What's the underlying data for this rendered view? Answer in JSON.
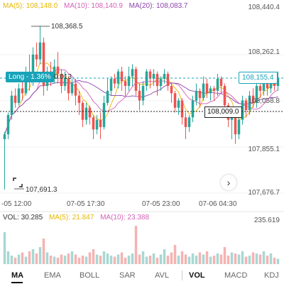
{
  "colors": {
    "up": "#26a69a",
    "down": "#ef5350",
    "ma5": "#e6b800",
    "ma10": "#d35fb7",
    "ma20": "#8e44ad",
    "accent": "#18a3b8"
  },
  "legend": {
    "ma5": "MA(5): 108,148.0",
    "ma10": "MA(10): 108,140.9",
    "ma20": "MA(20): 108,083.7"
  },
  "y_axis": [
    "108,440.4",
    "108,262.1",
    "108,058.8",
    "107,855.1",
    "107,676.7"
  ],
  "x_axis": [
    "-05 12:00",
    "07-05 17:30",
    "07-05 23:00",
    "07-06 04:30"
  ],
  "annotations": {
    "high": "108,368.5",
    "low": "107,691.3",
    "position_label": "Long - 1.36%",
    "position_value": "0.013",
    "current_price": "108,155.4",
    "last_price": "108,009.0"
  },
  "volume": {
    "label": "VOL: 30.285",
    "ma5": "MA(5): 21.847",
    "ma10": "MA(10): 23.388",
    "axis_max": "235.619"
  },
  "tabs": [
    "MA",
    "EMA",
    "BOLL",
    "SAR",
    "AVL",
    "VOL",
    "MACD",
    "KDJ"
  ],
  "active_tabs": [
    "MA",
    "VOL"
  ],
  "icons": {
    "nav": "chevron-right-icon",
    "crop": "crop-frame-icon"
  },
  "chart_data": {
    "type": "candlestick",
    "y_range": [
      107676.7,
      108440.4
    ],
    "candles": [
      [
        107900,
        107920,
        107691,
        107930,
        0
      ],
      [
        107920,
        108000,
        107900,
        108010,
        0
      ],
      [
        108000,
        108080,
        107980,
        108100,
        0
      ],
      [
        108080,
        108050,
        108030,
        108110,
        1
      ],
      [
        108050,
        108110,
        108040,
        108130,
        0
      ],
      [
        108110,
        108090,
        108060,
        108140,
        1
      ],
      [
        108090,
        108160,
        108080,
        108200,
        0
      ],
      [
        108160,
        108140,
        108100,
        108250,
        1
      ],
      [
        108140,
        108250,
        108120,
        108280,
        0
      ],
      [
        108250,
        108230,
        108200,
        108300,
        1
      ],
      [
        108230,
        108300,
        108210,
        108368,
        0
      ],
      [
        108300,
        108120,
        108080,
        108320,
        1
      ],
      [
        108120,
        108180,
        108100,
        108200,
        0
      ],
      [
        108180,
        108150,
        108120,
        108220,
        1
      ],
      [
        108150,
        108200,
        108130,
        108230,
        0
      ],
      [
        108200,
        108170,
        108130,
        108260,
        1
      ],
      [
        108170,
        108120,
        108090,
        108190,
        1
      ],
      [
        108120,
        108150,
        108100,
        108180,
        0
      ],
      [
        108150,
        108090,
        108060,
        108160,
        1
      ],
      [
        108090,
        108130,
        108080,
        108150,
        0
      ],
      [
        108130,
        108080,
        108040,
        108150,
        1
      ],
      [
        108080,
        108050,
        108000,
        108100,
        1
      ],
      [
        108050,
        107980,
        107950,
        108060,
        1
      ],
      [
        107980,
        108030,
        107960,
        108050,
        0
      ],
      [
        108030,
        107990,
        107960,
        108040,
        1
      ],
      [
        107990,
        107940,
        107900,
        108000,
        1
      ],
      [
        107940,
        107980,
        107920,
        108000,
        0
      ],
      [
        107980,
        107950,
        107900,
        108010,
        1
      ],
      [
        107950,
        108050,
        107940,
        108080,
        0
      ],
      [
        108050,
        108100,
        108040,
        108150,
        0
      ],
      [
        108100,
        108150,
        108080,
        108160,
        0
      ],
      [
        108150,
        108130,
        108110,
        108170,
        1
      ],
      [
        108130,
        108180,
        108110,
        108190,
        0
      ],
      [
        108180,
        108140,
        108100,
        108200,
        1
      ],
      [
        108140,
        108120,
        108080,
        108160,
        1
      ],
      [
        108120,
        108160,
        108100,
        108200,
        0
      ],
      [
        108160,
        108190,
        108120,
        108210,
        0
      ],
      [
        108190,
        108100,
        108080,
        108200,
        1
      ],
      [
        108100,
        108060,
        108020,
        108130,
        1
      ],
      [
        108060,
        108120,
        108040,
        108140,
        0
      ],
      [
        108120,
        108180,
        108100,
        108190,
        0
      ],
      [
        108180,
        108150,
        108110,
        108190,
        1
      ],
      [
        108150,
        108170,
        108120,
        108190,
        0
      ],
      [
        108170,
        108120,
        108080,
        108180,
        1
      ],
      [
        108120,
        108150,
        108100,
        108160,
        0
      ],
      [
        108150,
        108170,
        108130,
        108190,
        0
      ],
      [
        108170,
        108120,
        108100,
        108180,
        1
      ],
      [
        108120,
        108090,
        108050,
        108130,
        1
      ],
      [
        108090,
        108030,
        108010,
        108100,
        1
      ],
      [
        108030,
        108060,
        108000,
        108070,
        0
      ],
      [
        108060,
        107990,
        107960,
        108070,
        1
      ],
      [
        107990,
        107950,
        107900,
        108010,
        1
      ],
      [
        107950,
        107990,
        107930,
        108000,
        0
      ],
      [
        107990,
        108060,
        107970,
        108080,
        0
      ],
      [
        108060,
        108100,
        108040,
        108130,
        0
      ],
      [
        108100,
        108070,
        108030,
        108110,
        1
      ],
      [
        108070,
        108130,
        108060,
        108160,
        0
      ],
      [
        108130,
        108090,
        108070,
        108150,
        1
      ],
      [
        108090,
        108110,
        108060,
        108120,
        0
      ],
      [
        108110,
        108100,
        108060,
        108120,
        1
      ],
      [
        108100,
        108150,
        108080,
        108170,
        0
      ],
      [
        108150,
        108120,
        108090,
        108160,
        1
      ],
      [
        108120,
        108040,
        108010,
        108130,
        1
      ],
      [
        108040,
        107980,
        107950,
        108050,
        1
      ],
      [
        107980,
        107990,
        107900,
        108010,
        0
      ],
      [
        107990,
        107920,
        107880,
        108000,
        1
      ],
      [
        107920,
        107980,
        107900,
        108010,
        0
      ],
      [
        107980,
        108060,
        107960,
        108080,
        0
      ],
      [
        108060,
        108020,
        107990,
        108070,
        1
      ],
      [
        108020,
        108080,
        108000,
        108100,
        0
      ],
      [
        108080,
        108050,
        108030,
        108110,
        1
      ],
      [
        108050,
        108120,
        108030,
        108130,
        0
      ],
      [
        108120,
        108100,
        108070,
        108130,
        1
      ],
      [
        108100,
        108140,
        108080,
        108160,
        0
      ],
      [
        108140,
        108110,
        108080,
        108150,
        1
      ],
      [
        108110,
        108150,
        108090,
        108160,
        0
      ],
      [
        108150,
        108120,
        108100,
        108170,
        1
      ],
      [
        108120,
        108155,
        108100,
        108180,
        0
      ]
    ],
    "volumes": [
      150,
      60,
      40,
      30,
      45,
      55,
      35,
      60,
      70,
      50,
      80,
      120,
      55,
      40,
      35,
      30,
      45,
      40,
      50,
      60,
      45,
      30,
      40,
      35,
      55,
      70,
      45,
      40,
      60,
      50,
      40,
      35,
      45,
      55,
      30,
      40,
      50,
      180,
      45,
      60,
      35,
      40,
      50,
      30,
      45,
      70,
      40,
      55,
      90,
      40,
      60,
      45,
      35,
      50,
      40,
      55,
      45,
      60,
      35,
      40,
      50,
      45,
      80,
      40,
      55,
      50,
      45,
      60,
      35,
      40,
      55,
      50,
      45,
      60,
      40,
      50,
      30,
      25
    ]
  }
}
